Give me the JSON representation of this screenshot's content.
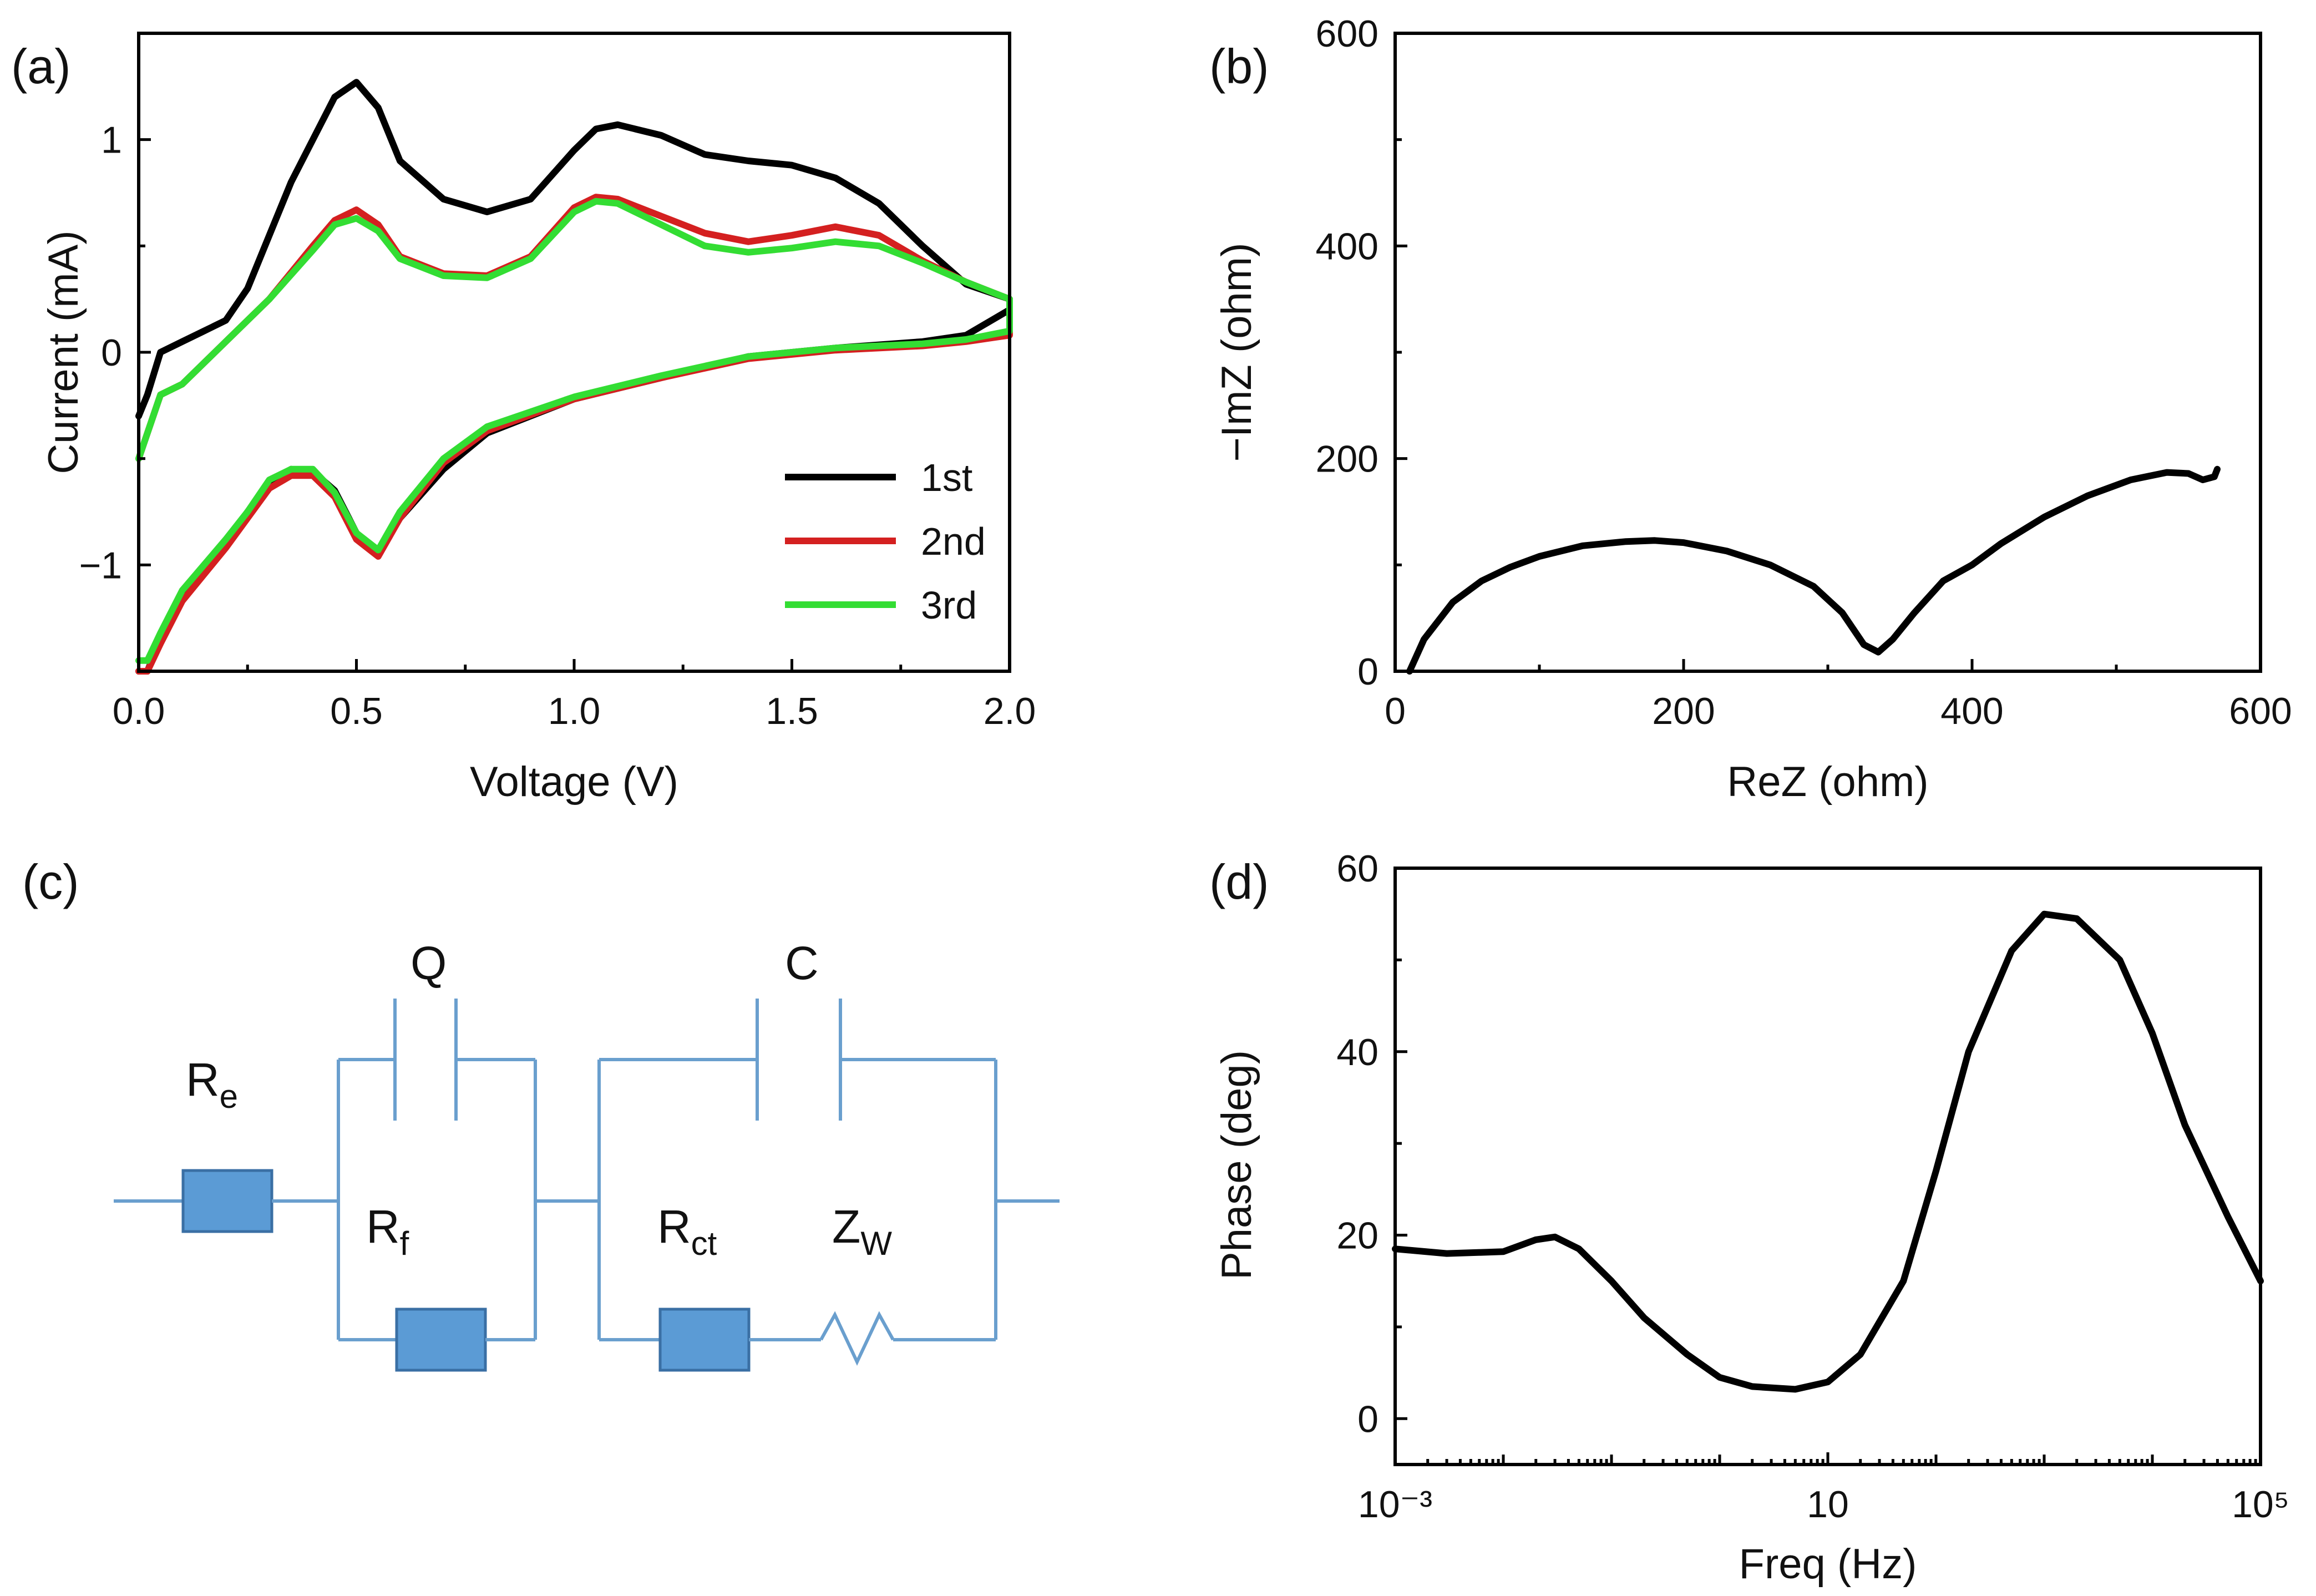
{
  "chart_data": [
    {
      "panel": "(a)",
      "type": "line",
      "xlabel": "Voltage (V)",
      "ylabel": "Current (mA)",
      "xlim": [
        0.0,
        2.0
      ],
      "ylim": [
        -1.5,
        1.5
      ],
      "xticks": [
        "0.0",
        "0.5",
        "1.0",
        "1.5",
        "2.0"
      ],
      "yticks": [
        "-1",
        "0",
        "1"
      ],
      "legend": [
        "1st",
        "2nd",
        "3rd"
      ],
      "series": [
        {
          "name": "1st",
          "color": "#000000",
          "x": [
            0.0,
            0.02,
            0.05,
            0.1,
            0.15,
            0.2,
            0.25,
            0.3,
            0.35,
            0.4,
            0.45,
            0.5,
            0.55,
            0.6,
            0.7,
            0.8,
            0.9,
            1.0,
            1.05,
            1.1,
            1.2,
            1.3,
            1.4,
            1.5,
            1.6,
            1.7,
            1.8,
            1.9,
            2.0,
            2.0,
            1.9,
            1.8,
            1.6,
            1.4,
            1.2,
            1.0,
            0.8,
            0.7,
            0.6,
            0.55,
            0.5,
            0.45,
            0.4,
            0.35,
            0.3,
            0.25,
            0.2,
            0.1,
            0.05,
            0.02,
            0.0
          ],
          "y": [
            -0.3,
            -0.2,
            0.0,
            0.05,
            0.1,
            0.15,
            0.3,
            0.55,
            0.8,
            1.0,
            1.2,
            1.27,
            1.15,
            0.9,
            0.72,
            0.66,
            0.72,
            0.95,
            1.05,
            1.07,
            1.02,
            0.93,
            0.9,
            0.88,
            0.82,
            0.7,
            0.5,
            0.32,
            0.25,
            0.2,
            0.08,
            0.05,
            0.02,
            -0.02,
            -0.12,
            -0.22,
            -0.38,
            -0.55,
            -0.78,
            -0.95,
            -0.85,
            -0.65,
            -0.56,
            -0.55,
            -0.62,
            -0.75,
            -0.9,
            -1.15,
            -1.35,
            -1.5,
            -1.5
          ]
        },
        {
          "name": "2nd",
          "color": "#d42020",
          "x": [
            0.0,
            0.05,
            0.1,
            0.2,
            0.3,
            0.4,
            0.45,
            0.5,
            0.55,
            0.6,
            0.7,
            0.8,
            0.9,
            1.0,
            1.05,
            1.1,
            1.2,
            1.3,
            1.4,
            1.5,
            1.6,
            1.7,
            1.8,
            1.9,
            2.0,
            2.0,
            1.9,
            1.8,
            1.6,
            1.4,
            1.2,
            1.0,
            0.8,
            0.7,
            0.6,
            0.55,
            0.5,
            0.45,
            0.4,
            0.35,
            0.3,
            0.25,
            0.2,
            0.1,
            0.05,
            0.02,
            0.0
          ],
          "y": [
            -0.5,
            -0.2,
            -0.15,
            0.05,
            0.25,
            0.5,
            0.62,
            0.67,
            0.6,
            0.45,
            0.37,
            0.36,
            0.45,
            0.68,
            0.73,
            0.72,
            0.64,
            0.56,
            0.52,
            0.55,
            0.59,
            0.55,
            0.43,
            0.33,
            0.25,
            0.08,
            0.05,
            0.03,
            0.01,
            -0.03,
            -0.12,
            -0.22,
            -0.37,
            -0.52,
            -0.78,
            -0.96,
            -0.88,
            -0.68,
            -0.58,
            -0.58,
            -0.64,
            -0.78,
            -0.92,
            -1.17,
            -1.37,
            -1.5,
            -1.5
          ]
        },
        {
          "name": "3rd",
          "color": "#33dd33",
          "x": [
            0.0,
            0.05,
            0.1,
            0.2,
            0.3,
            0.4,
            0.45,
            0.5,
            0.55,
            0.6,
            0.7,
            0.8,
            0.9,
            1.0,
            1.05,
            1.1,
            1.2,
            1.3,
            1.4,
            1.5,
            1.6,
            1.7,
            1.8,
            1.9,
            2.0,
            2.0,
            1.9,
            1.8,
            1.6,
            1.4,
            1.2,
            1.0,
            0.8,
            0.7,
            0.6,
            0.55,
            0.5,
            0.45,
            0.4,
            0.35,
            0.3,
            0.25,
            0.2,
            0.1,
            0.05,
            0.02,
            0.0
          ],
          "y": [
            -0.5,
            -0.2,
            -0.15,
            0.05,
            0.25,
            0.48,
            0.6,
            0.63,
            0.57,
            0.44,
            0.36,
            0.35,
            0.44,
            0.66,
            0.71,
            0.7,
            0.6,
            0.5,
            0.47,
            0.49,
            0.52,
            0.5,
            0.42,
            0.33,
            0.25,
            0.1,
            0.06,
            0.04,
            0.02,
            -0.02,
            -0.11,
            -0.21,
            -0.35,
            -0.5,
            -0.75,
            -0.93,
            -0.85,
            -0.66,
            -0.55,
            -0.55,
            -0.6,
            -0.75,
            -0.88,
            -1.12,
            -1.32,
            -1.45,
            -1.45
          ]
        }
      ]
    },
    {
      "panel": "(b)",
      "type": "line",
      "xlabel": "ReZ (ohm)",
      "ylabel": "−ImZ (ohm)",
      "xlim": [
        0,
        600
      ],
      "ylim": [
        0,
        600
      ],
      "xticks": [
        "0",
        "200",
        "400",
        "600"
      ],
      "yticks": [
        "0",
        "200",
        "400",
        "600"
      ],
      "series": [
        {
          "name": "Nyquist",
          "color": "#000000",
          "x": [
            10,
            20,
            40,
            60,
            80,
            100,
            130,
            160,
            180,
            200,
            230,
            260,
            290,
            310,
            325,
            335,
            345,
            360,
            380,
            400,
            420,
            450,
            480,
            510,
            535,
            550,
            560,
            568,
            570
          ],
          "y": [
            0,
            30,
            65,
            85,
            98,
            108,
            118,
            122,
            123,
            121,
            113,
            100,
            80,
            55,
            25,
            18,
            30,
            55,
            85,
            100,
            120,
            145,
            165,
            180,
            187,
            186,
            180,
            183,
            190
          ]
        }
      ]
    },
    {
      "panel": "(d)",
      "type": "line",
      "xlabel": "Freq (Hz)",
      "ylabel": "Phase (deg)",
      "xscale": "log",
      "xlim": [
        0.001,
        100000
      ],
      "ylim": [
        -5,
        60
      ],
      "xticks": [
        "10⁻³",
        "10",
        "10⁵"
      ],
      "yticks": [
        "0",
        "20",
        "40",
        "60"
      ],
      "series": [
        {
          "name": "Bode phase",
          "color": "#000000",
          "x": [
            0.001,
            0.003,
            0.01,
            0.02,
            0.03,
            0.05,
            0.1,
            0.2,
            0.5,
            1,
            2,
            5,
            10,
            20,
            50,
            100,
            200,
            500,
            1000,
            2000,
            5000,
            10000,
            20000,
            50000,
            100000
          ],
          "y": [
            18.5,
            18.0,
            18.2,
            19.5,
            19.8,
            18.5,
            15,
            11,
            7,
            4.5,
            3.5,
            3.2,
            4,
            7,
            15,
            27,
            40,
            51,
            55,
            54.5,
            50,
            42,
            32,
            22,
            15
          ]
        }
      ]
    }
  ],
  "panels": {
    "a": "(a)",
    "b": "(b)",
    "c": "(c)",
    "d": "(d)"
  },
  "circuit": {
    "q_label": "Q",
    "c_label": "C",
    "re": {
      "main": "R",
      "sub": "e"
    },
    "rf": {
      "main": "R",
      "sub": "f"
    },
    "rct": {
      "main": "R",
      "sub": "ct"
    },
    "zw": {
      "main": "Z",
      "sub": "W"
    },
    "color": "#6a9fce",
    "block_color": "#5b9bd5"
  }
}
